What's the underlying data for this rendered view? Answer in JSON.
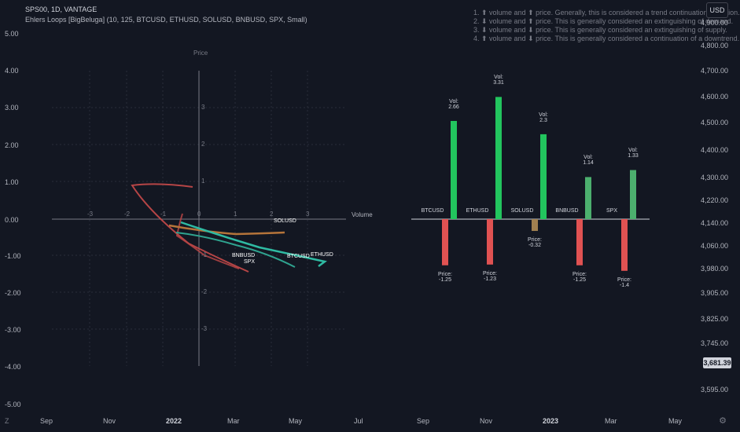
{
  "header": {
    "title": "SPS00, 1D, VANTAGE",
    "indicator": "Ehlers Loops [BigBeluga] (10, 125, BTCUSD, ETHUSD, SOLUSD, BNBUSD, SPX, Small)"
  },
  "notes": [
    "1. ⬆ volume and ⬆ price. Generally, this is considered a trend continuation condition.",
    "2. ⬇ volume and ⬆ price. This is generally considered an extinguishing of demand.",
    "3. ⬇ volume and ⬇ price. This is generally considered an extinguishing of supply.",
    "4. ⬆ volume and ⬇ price. This is generally considered a continuation of a downtrend."
  ],
  "currency_button": "USD",
  "left_axis": [
    "5.00",
    "4.00",
    "3.00",
    "2.00",
    "1.00",
    "0.00",
    "-1.00",
    "-2.00",
    "-3.00",
    "-4.00",
    "-5.00"
  ],
  "right_axis": [
    "4,900.00",
    "4,800.00",
    "4,700.00",
    "4,600.00",
    "4,500.00",
    "4,400.00",
    "4,300.00",
    "4,220.00",
    "4,140.00",
    "4,060.00",
    "3,980.00",
    "3,905.00",
    "3,825.00",
    "3,745.00",
    "3,595.00"
  ],
  "current_price": "3,681.39",
  "time_axis": [
    "Sep",
    "Nov",
    "2022",
    "Mar",
    "May",
    "Jul",
    "Sep",
    "Nov",
    "2023",
    "Mar",
    "May"
  ],
  "loop_plot": {
    "y_title": "Price",
    "x_title": "Volume",
    "x_ticks": [
      "-3",
      "-2",
      "-1",
      "0",
      "1",
      "2",
      "3"
    ],
    "y_ticks": [
      "3",
      "2",
      "1",
      "-1",
      "-2",
      "-3"
    ],
    "symbols": [
      "SOLUSD",
      "BNBUSD",
      "SPX",
      "BTCUSD",
      "ETHUSD"
    ]
  },
  "chart_data": {
    "type": "bar",
    "categories": [
      "BTCUSD",
      "ETHUSD",
      "SOLUSD",
      "BNBUSD",
      "SPX"
    ],
    "series": [
      {
        "name": "Vol",
        "values": [
          2.66,
          3.31,
          2.3,
          1.14,
          1.33
        ]
      },
      {
        "name": "Price",
        "values": [
          -1.25,
          -1.23,
          -0.32,
          -1.25,
          -1.4
        ]
      }
    ],
    "vol_label": "Vol:",
    "price_label": "Price:",
    "vol_colors": [
      "#22c55e",
      "#22c55e",
      "#22c55e",
      "#4caf6e",
      "#4caf6e"
    ],
    "price_colors": [
      "#e05252",
      "#e05252",
      "#a08050",
      "#e05252",
      "#e05252"
    ]
  },
  "toolbar": {
    "icon": "gear-icon",
    "bottom_left": "Z"
  }
}
